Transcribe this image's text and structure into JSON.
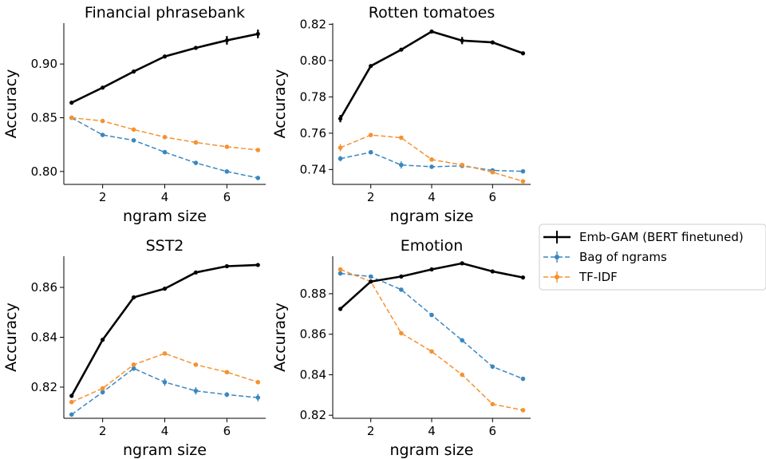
{
  "colors": {
    "emb": "#000000",
    "bag": "#3a87c0",
    "tfidf": "#f6912f"
  },
  "legend": {
    "entries": [
      {
        "label": "Emb-GAM (BERT finetuned)",
        "color": "#000000",
        "style": "solid"
      },
      {
        "label": "Bag of ngrams",
        "color": "#3a87c0",
        "style": "dashed"
      },
      {
        "label": "TF-IDF",
        "color": "#f6912f",
        "style": "dashed"
      }
    ]
  },
  "chart_data": [
    {
      "type": "line",
      "title": "Financial phrasebank",
      "xlabel": "ngram size",
      "ylabel": "Accuracy",
      "x": [
        1,
        2,
        3,
        4,
        5,
        6,
        7
      ],
      "xticks": [
        "2",
        "4",
        "6"
      ],
      "yticks": [
        "0.80",
        "0.85",
        "0.90"
      ],
      "xlim": [
        0.75,
        7.25
      ],
      "ylim": [
        0.788,
        0.938
      ],
      "series": [
        {
          "name": "Emb-GAM (BERT finetuned)",
          "values": [
            0.864,
            0.878,
            0.893,
            0.907,
            0.915,
            0.922,
            0.928
          ],
          "err": [
            0,
            0,
            0,
            0,
            0,
            0.004,
            0.004
          ]
        },
        {
          "name": "Bag of ngrams",
          "values": [
            0.85,
            0.834,
            0.829,
            0.818,
            0.808,
            0.8,
            0.794
          ]
        },
        {
          "name": "TF-IDF",
          "values": [
            0.85,
            0.847,
            0.839,
            0.832,
            0.827,
            0.823,
            0.82
          ]
        }
      ]
    },
    {
      "type": "line",
      "title": "Rotten tomatoes",
      "xlabel": "ngram size",
      "ylabel": "Accuracy",
      "x": [
        1,
        2,
        3,
        4,
        5,
        6,
        7
      ],
      "xticks": [
        "2",
        "4",
        "6"
      ],
      "yticks": [
        "0.74",
        "0.76",
        "0.78",
        "0.80",
        "0.82"
      ],
      "xlim": [
        0.75,
        7.25
      ],
      "ylim": [
        0.7318,
        0.8206
      ],
      "series": [
        {
          "name": "Emb-GAM (BERT finetuned)",
          "values": [
            0.768,
            0.797,
            0.806,
            0.816,
            0.811,
            0.81,
            0.804
          ],
          "err": [
            0.002,
            0,
            0,
            0,
            0.002,
            0,
            0
          ]
        },
        {
          "name": "Bag of ngrams",
          "values": [
            0.746,
            0.7495,
            0.7425,
            0.7415,
            0.742,
            0.7395,
            0.739
          ],
          "err": [
            0.0015,
            0,
            0.002,
            0,
            0.001,
            0.001,
            0
          ]
        },
        {
          "name": "TF-IDF",
          "values": [
            0.752,
            0.759,
            0.7575,
            0.7455,
            0.7425,
            0.7385,
            0.7335
          ],
          "err": [
            0.002,
            0,
            0,
            0,
            0,
            0,
            0
          ]
        }
      ]
    },
    {
      "type": "line",
      "title": "SST2",
      "xlabel": "ngram size",
      "ylabel": "Accuracy",
      "x": [
        1,
        2,
        3,
        4,
        5,
        6,
        7
      ],
      "xticks": [
        "2",
        "4",
        "6"
      ],
      "yticks": [
        "0.82",
        "0.84",
        "0.86"
      ],
      "xlim": [
        0.75,
        7.25
      ],
      "ylim": [
        0.8075,
        0.8725
      ],
      "series": [
        {
          "name": "Emb-GAM (BERT finetuned)",
          "values": [
            0.8165,
            0.839,
            0.856,
            0.8595,
            0.866,
            0.8685,
            0.869
          ]
        },
        {
          "name": "Bag of ngrams",
          "values": [
            0.809,
            0.818,
            0.8275,
            0.822,
            0.8185,
            0.817,
            0.8158
          ],
          "err": [
            0,
            0.001,
            0.001,
            0.0015,
            0.0015,
            0.001,
            0.0015
          ]
        },
        {
          "name": "TF-IDF",
          "values": [
            0.814,
            0.8195,
            0.829,
            0.8335,
            0.829,
            0.826,
            0.822
          ]
        }
      ]
    },
    {
      "type": "line",
      "title": "Emotion",
      "xlabel": "ngram size",
      "ylabel": "Accuracy",
      "x": [
        1,
        2,
        3,
        4,
        5,
        6,
        7
      ],
      "xticks": [
        "2",
        "4",
        "6"
      ],
      "yticks": [
        "0.82",
        "0.84",
        "0.86",
        "0.88"
      ],
      "xlim": [
        0.75,
        7.25
      ],
      "ylim": [
        0.8185,
        0.8985
      ],
      "series": [
        {
          "name": "Emb-GAM (BERT finetuned)",
          "values": [
            0.8725,
            0.886,
            0.8885,
            0.892,
            0.895,
            0.891,
            0.888
          ]
        },
        {
          "name": "Bag of ngrams",
          "values": [
            0.89,
            0.8885,
            0.882,
            0.8695,
            0.857,
            0.844,
            0.838
          ]
        },
        {
          "name": "TF-IDF",
          "values": [
            0.892,
            0.886,
            0.8605,
            0.8515,
            0.84,
            0.8255,
            0.8225
          ]
        }
      ]
    }
  ]
}
